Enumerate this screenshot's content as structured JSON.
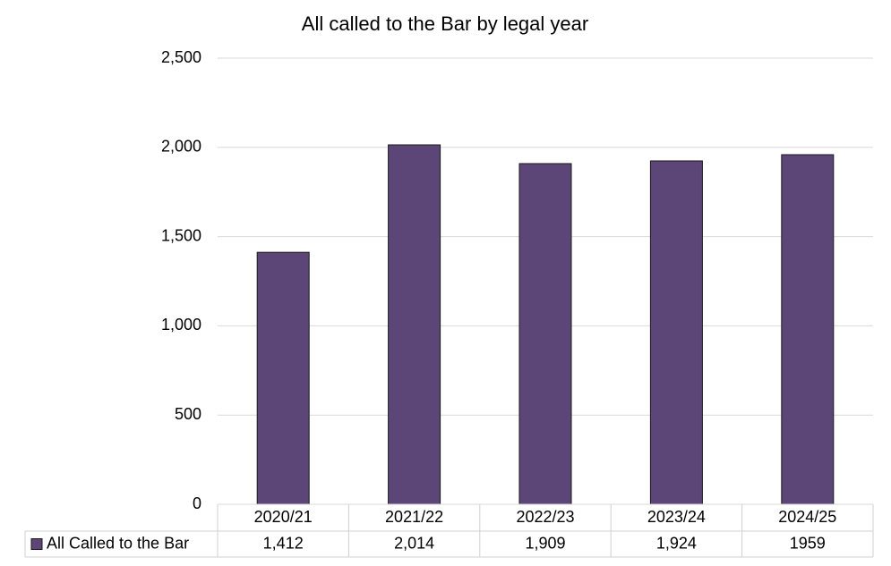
{
  "chart_data": {
    "type": "bar",
    "title": "All called to the Bar by legal year",
    "categories": [
      "2020/21",
      "2021/22",
      "2022/23",
      "2023/24",
      "2024/25"
    ],
    "series": [
      {
        "name": "All Called to the Bar",
        "color": "#5c4677",
        "values": [
          1412,
          2014,
          1909,
          1924,
          1959
        ],
        "value_labels": [
          "1,412",
          "2,014",
          "1,909",
          "1,924",
          "1959"
        ]
      }
    ],
    "ylim": [
      0,
      2500
    ],
    "yticks": [
      0,
      500,
      {
        "value": 1000,
        "label": "1,000"
      },
      {
        "value": 1500,
        "label": "1,500"
      },
      {
        "value": 2000,
        "label": "2,000"
      },
      {
        "value": 2500,
        "label": "2,500"
      }
    ],
    "grid": true
  }
}
